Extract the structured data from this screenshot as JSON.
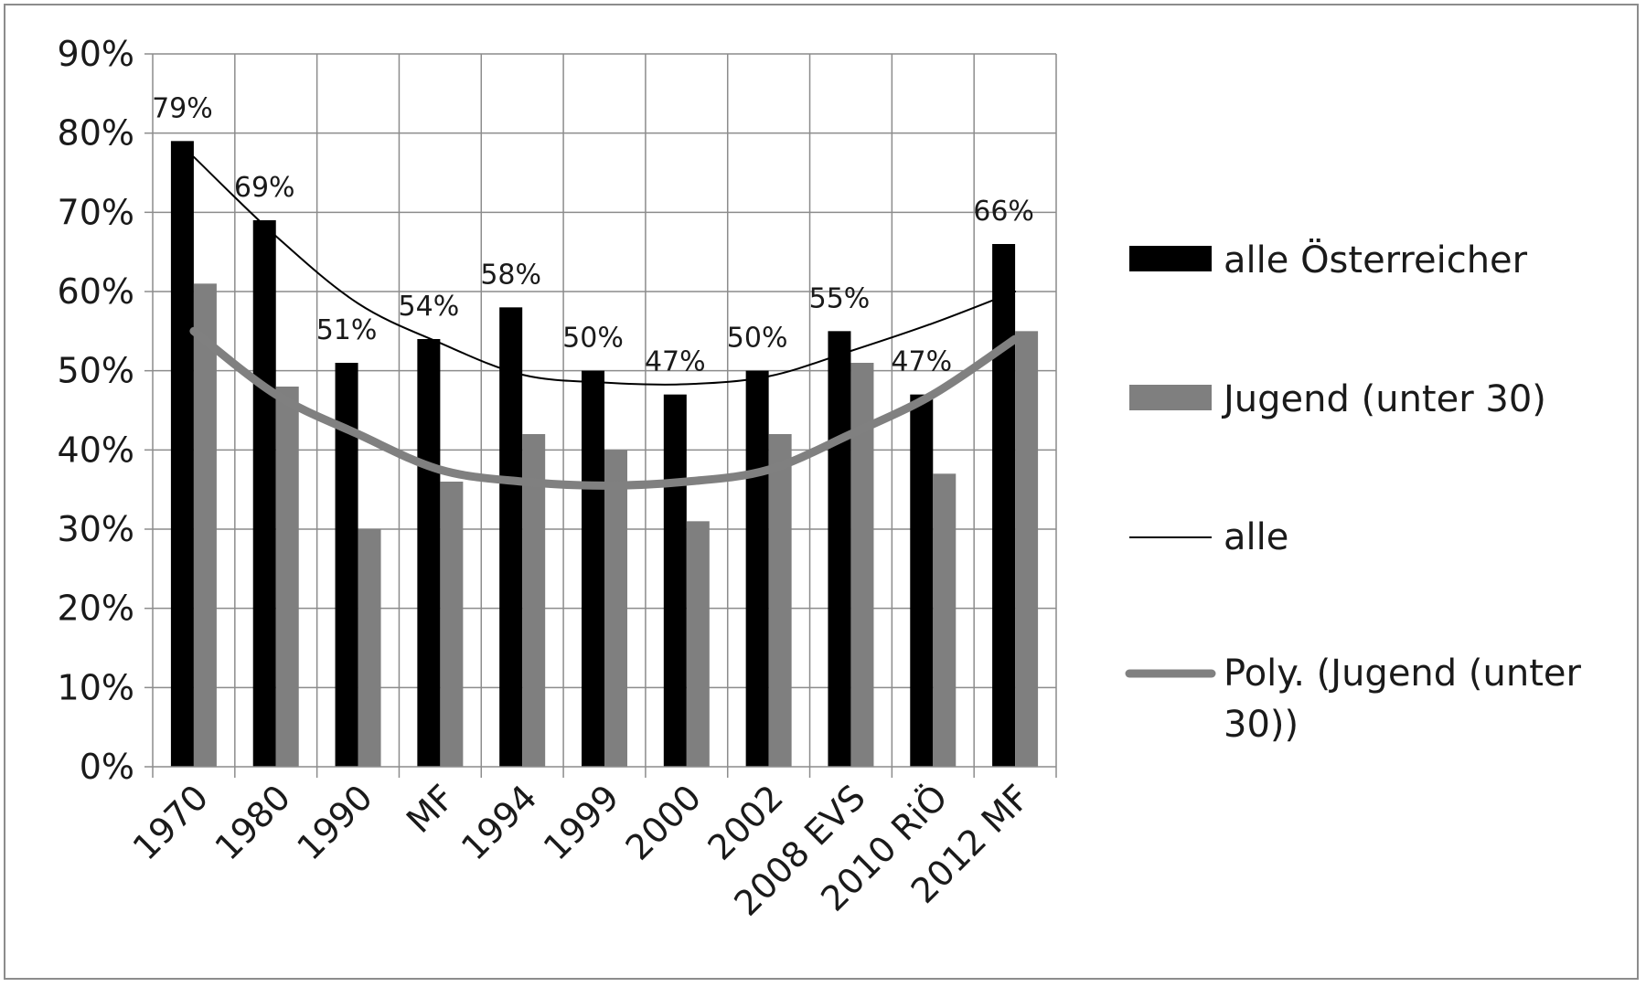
{
  "chart_data": {
    "type": "bar",
    "title": "",
    "xlabel": "",
    "ylabel": "",
    "ylim": [
      0,
      90
    ],
    "yticks": [
      "0%",
      "10%",
      "20%",
      "30%",
      "40%",
      "50%",
      "60%",
      "70%",
      "80%",
      "90%"
    ],
    "grid": true,
    "legend_position": "right",
    "categories": [
      "1970",
      "1980",
      "1990",
      "MF",
      "1994",
      "1999",
      "2000",
      "2002",
      "2008 EVS",
      "2010 RiÖ",
      "2012 MF"
    ],
    "series": [
      {
        "name": "alle Österreicher",
        "type": "bar",
        "color": "#000000",
        "values": [
          79,
          69,
          51,
          54,
          58,
          50,
          47,
          50,
          55,
          47,
          66
        ],
        "labels": [
          "79%",
          "69%",
          "51%",
          "54%",
          "58%",
          "50%",
          "47%",
          "50%",
          "55%",
          "47%",
          "66%"
        ]
      },
      {
        "name": "Jugend (unter 30)",
        "type": "bar",
        "color": "#7f7f7f",
        "values": [
          61,
          48,
          30,
          36,
          42,
          40,
          31,
          42,
          51,
          37,
          55
        ]
      },
      {
        "name": "alle",
        "type": "trendline",
        "color": "#000000",
        "values": [
          77,
          67,
          58.5,
          53.5,
          49.5,
          48.5,
          48.3,
          49.3,
          52.5,
          56,
          60
        ]
      },
      {
        "name": "Poly. (Jugend (unter 30))",
        "type": "trendline",
        "color": "#808080",
        "values": [
          55,
          47,
          42,
          37.5,
          36,
          35.5,
          36,
          37.5,
          42,
          47,
          54
        ]
      }
    ]
  },
  "legend": {
    "items": [
      {
        "label": "alle Österreicher"
      },
      {
        "label": "Jugend (unter 30)"
      },
      {
        "label": "alle"
      },
      {
        "label_line1": "Poly. (Jugend (unter",
        "label_line2": "30))"
      }
    ]
  }
}
